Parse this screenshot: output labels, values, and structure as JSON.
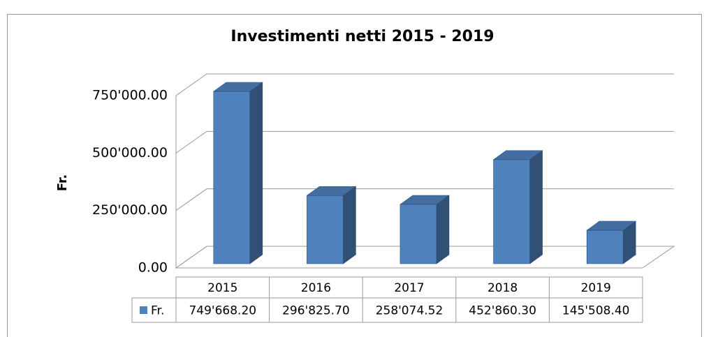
{
  "chart_data": {
    "type": "bar3d",
    "title": "Investimenti netti 2015 - 2019",
    "y_label": "Fr.",
    "categories": [
      "2015",
      "2016",
      "2017",
      "2018",
      "2019"
    ],
    "series": [
      {
        "name": "Fr.",
        "color": "#4f81bd",
        "values": [
          749668.2,
          296825.7,
          258074.52,
          452860.3,
          145508.4
        ],
        "value_labels": [
          "749'668.20",
          "296'825.70",
          "258'074.52",
          "452'860.30",
          "145'508.40"
        ]
      }
    ],
    "ylim": [
      0,
      750000
    ],
    "yticks": [
      {
        "value": 0,
        "label": "0.00"
      },
      {
        "value": 250000,
        "label": "250'000.00"
      },
      {
        "value": 500000,
        "label": "500'000.00"
      },
      {
        "value": 750000,
        "label": "750'000.00"
      }
    ],
    "grid": true
  }
}
